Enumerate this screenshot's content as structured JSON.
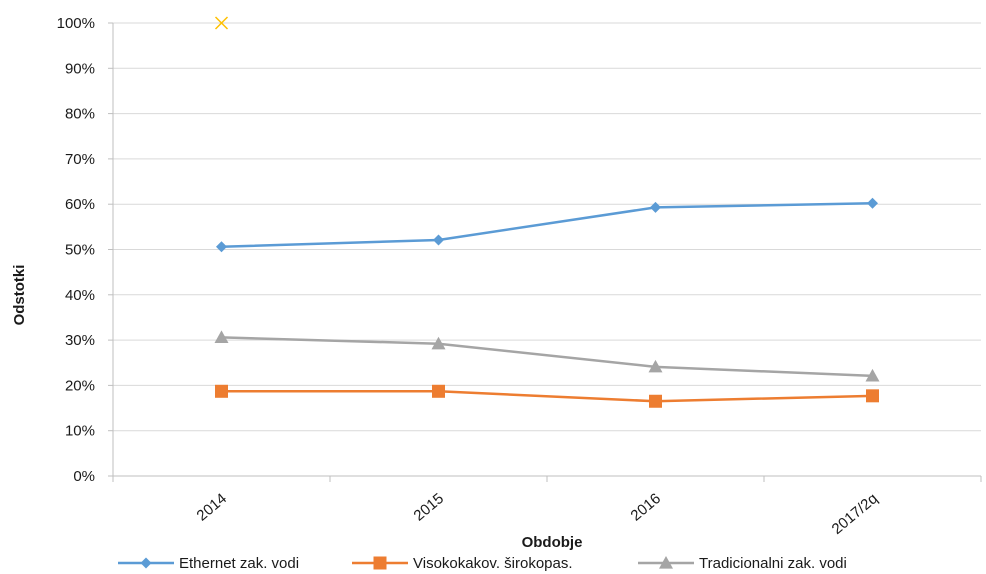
{
  "chart_data": {
    "type": "line",
    "title": "",
    "xlabel": "Obdobje",
    "ylabel": "Odstotki",
    "categories": [
      "2014",
      "2015",
      "2016",
      "2017/2q"
    ],
    "ylim": [
      0,
      100
    ],
    "yticks": [
      "0%",
      "10%",
      "20%",
      "30%",
      "40%",
      "50%",
      "60%",
      "70%",
      "80%",
      "90%",
      "100%"
    ],
    "grid": true,
    "legend_position": "bottom",
    "series": [
      {
        "name": "Ethernet zak. vodi",
        "color": "#5b9bd5",
        "marker": "diamond",
        "values": [
          50.6,
          52.1,
          59.3,
          60.2
        ]
      },
      {
        "name": "Visokokakov. širokopas.",
        "color": "#ed7d31",
        "marker": "square",
        "values": [
          18.7,
          18.7,
          16.5,
          17.7
        ]
      },
      {
        "name": "Tradicionalni zak. vodi",
        "color": "#a5a5a5",
        "marker": "triangle",
        "values": [
          30.6,
          29.2,
          24.1,
          22.1
        ]
      }
    ],
    "extra_points": [
      {
        "name": "",
        "color": "#ffc000",
        "marker": "x",
        "x": "2014",
        "y": 100
      }
    ]
  }
}
